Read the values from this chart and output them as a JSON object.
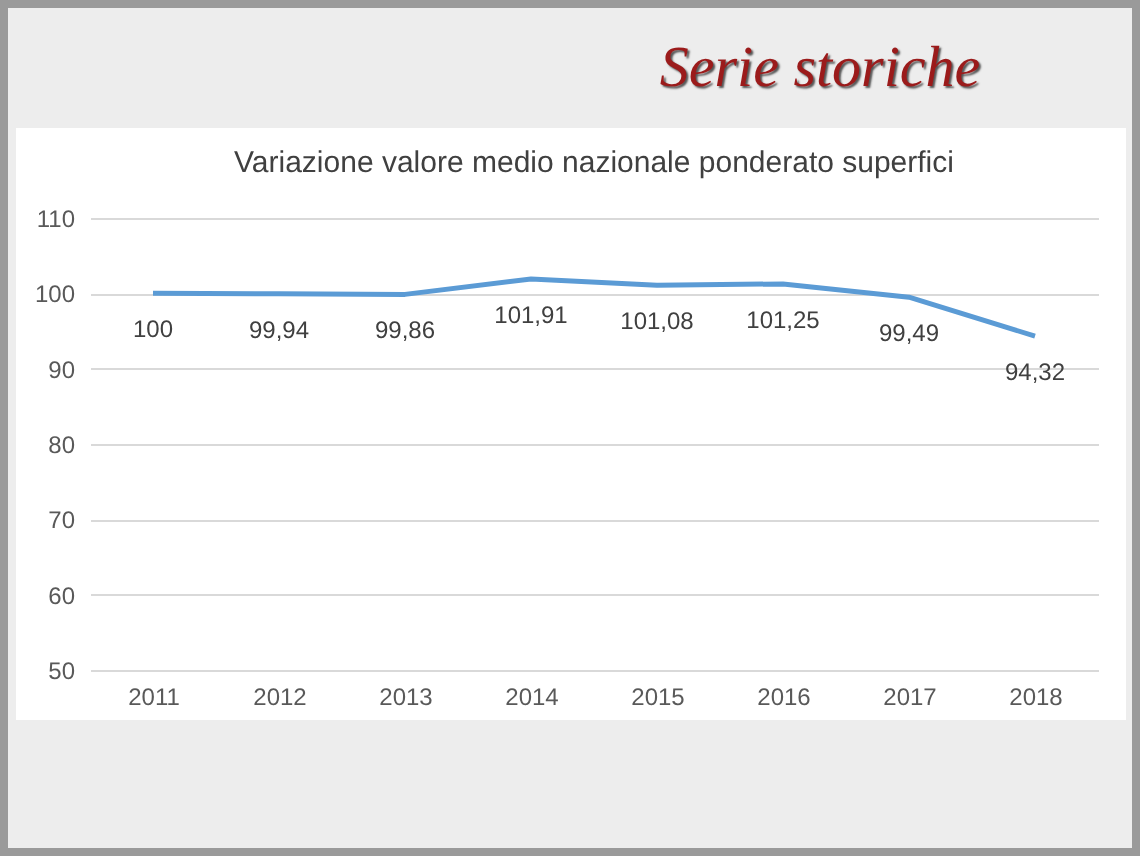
{
  "chart_data": {
    "type": "line",
    "title": "Serie storiche",
    "subtitle": "Variazione valore medio nazionale ponderato superfici",
    "categories": [
      "2011",
      "2012",
      "2013",
      "2014",
      "2015",
      "2016",
      "2017",
      "2018"
    ],
    "series": [
      {
        "color": "#5b9bd5",
        "values": [
          100,
          99.94,
          99.86,
          101.91,
          101.08,
          101.25,
          99.49,
          94.32
        ],
        "value_labels": [
          "100",
          "99,94",
          "99,86",
          "101,91",
          "101,08",
          "101,25",
          "99,49",
          "94,32"
        ]
      }
    ],
    "ylim": [
      50,
      110
    ],
    "yticks": [
      50,
      60,
      70,
      80,
      90,
      100,
      110
    ],
    "grid": "y",
    "legend": false,
    "marker": "none",
    "line_style": "solid"
  }
}
